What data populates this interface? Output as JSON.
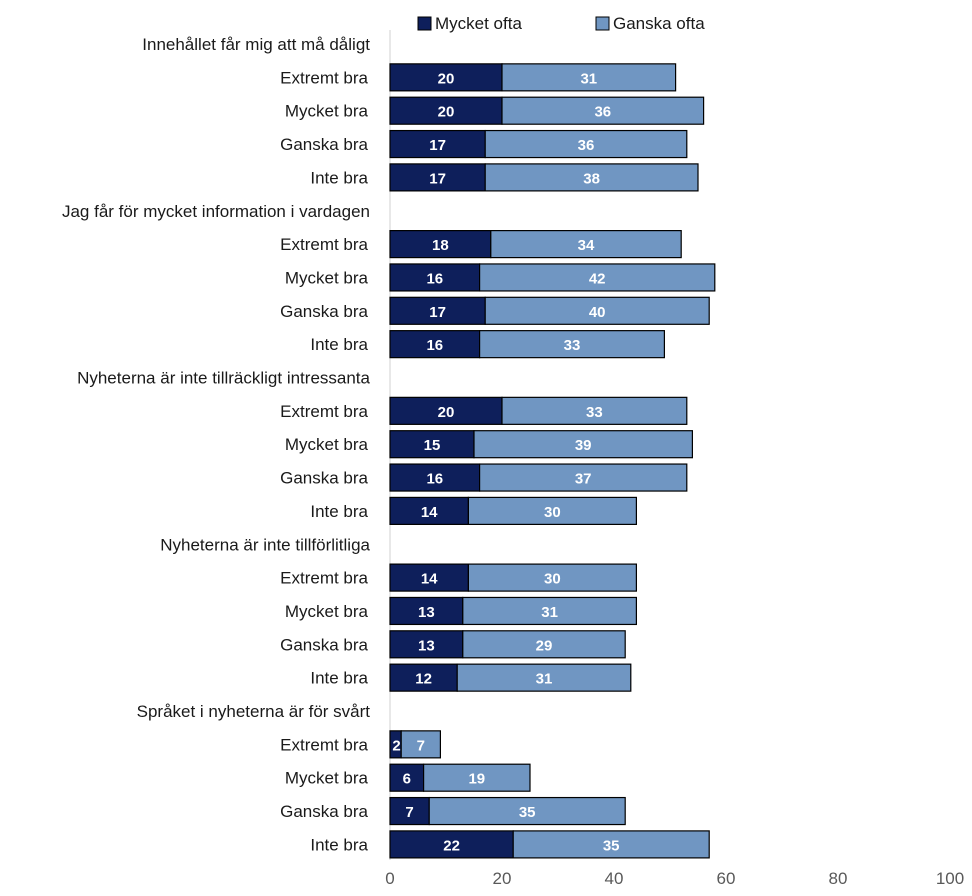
{
  "chart_data": {
    "type": "bar",
    "orientation": "horizontal",
    "stacked": true,
    "legend_position": "top",
    "grid": false,
    "xlim": [
      0,
      100
    ],
    "xticks": [
      "0",
      "20",
      "40",
      "60",
      "80",
      "100"
    ],
    "series": [
      {
        "name": "Mycket ofta",
        "color": "#0e1f5b"
      },
      {
        "name": "Ganska ofta",
        "color": "#7096c2"
      }
    ],
    "groups": [
      {
        "label": "Innehållet får mig att må dåligt",
        "rows": [
          {
            "label": "Extremt bra",
            "values": [
              20,
              31
            ]
          },
          {
            "label": "Mycket bra",
            "values": [
              20,
              36
            ]
          },
          {
            "label": "Ganska bra",
            "values": [
              17,
              36
            ]
          },
          {
            "label": "Inte bra",
            "values": [
              17,
              38
            ]
          }
        ]
      },
      {
        "label": "Jag får för mycket information i vardagen",
        "rows": [
          {
            "label": "Extremt bra",
            "values": [
              18,
              34
            ]
          },
          {
            "label": "Mycket bra",
            "values": [
              16,
              42
            ]
          },
          {
            "label": "Ganska bra",
            "values": [
              17,
              40
            ]
          },
          {
            "label": "Inte bra",
            "values": [
              16,
              33
            ]
          }
        ]
      },
      {
        "label": "Nyheterna är inte tillräckligt intressanta",
        "rows": [
          {
            "label": "Extremt bra",
            "values": [
              20,
              33
            ]
          },
          {
            "label": "Mycket bra",
            "values": [
              15,
              39
            ]
          },
          {
            "label": "Ganska bra",
            "values": [
              16,
              37
            ]
          },
          {
            "label": "Inte bra",
            "values": [
              14,
              30
            ]
          }
        ]
      },
      {
        "label": "Nyheterna är inte tillförlitliga",
        "rows": [
          {
            "label": "Extremt bra",
            "values": [
              14,
              30
            ]
          },
          {
            "label": "Mycket bra",
            "values": [
              13,
              31
            ]
          },
          {
            "label": "Ganska bra",
            "values": [
              13,
              29
            ]
          },
          {
            "label": "Inte bra",
            "values": [
              12,
              31
            ]
          }
        ]
      },
      {
        "label": "Språket i nyheterna är för svårt",
        "rows": [
          {
            "label": "Extremt bra",
            "values": [
              2,
              7
            ]
          },
          {
            "label": "Mycket bra",
            "values": [
              6,
              19
            ]
          },
          {
            "label": "Ganska bra",
            "values": [
              7,
              35
            ]
          },
          {
            "label": "Inte bra",
            "values": [
              22,
              35
            ]
          }
        ]
      }
    ]
  }
}
